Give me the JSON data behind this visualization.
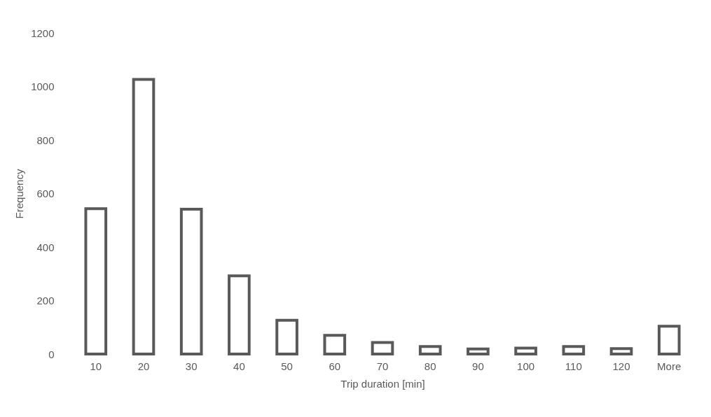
{
  "chart_data": {
    "type": "bar",
    "xlabel": "Trip duration [min]",
    "ylabel": "Frequency",
    "categories": [
      "10",
      "20",
      "30",
      "40",
      "50",
      "60",
      "70",
      "80",
      "90",
      "100",
      "110",
      "120",
      "More"
    ],
    "values": [
      543,
      1026,
      541,
      292,
      126,
      70,
      43,
      28,
      19,
      22,
      28,
      20,
      104
    ],
    "color": "#595959",
    "ylim": [
      0,
      1200
    ],
    "yticks": [
      0,
      200,
      400,
      600,
      800,
      1000,
      1200
    ],
    "grid": false
  }
}
